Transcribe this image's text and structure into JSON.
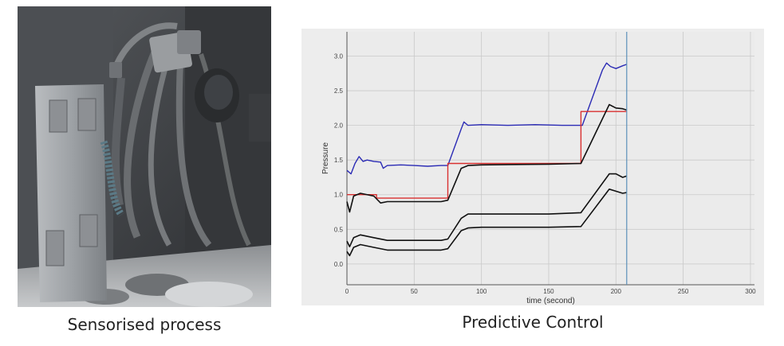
{
  "captions": {
    "left": "Sensorised process",
    "right": "Predictive Control"
  },
  "colors": {
    "blue_series": "#2b2bb5",
    "red_series": "#d93030",
    "black_series": "#111111",
    "cursor_line": "#5b8fb8"
  },
  "chart_data": {
    "type": "line",
    "xlabel": "time (second)",
    "ylabel": "Pressure",
    "xlim": [
      0,
      303
    ],
    "ylim": [
      -0.3,
      3.35
    ],
    "x_ticks": [
      "0",
      "50",
      "100",
      "150",
      "200",
      "250",
      "300"
    ],
    "y_ticks": [
      "0.0",
      "0.5",
      "1.0",
      "1.5",
      "2.0",
      "2.5",
      "3.0"
    ],
    "grid": true,
    "cursor_x": 208,
    "series": [
      {
        "color": "blue",
        "x": [
          0,
          3,
          6,
          9,
          12,
          15,
          20,
          25,
          27,
          30,
          40,
          50,
          60,
          70,
          75,
          85,
          87,
          90,
          100,
          120,
          140,
          160,
          175,
          190,
          193,
          196,
          200,
          205,
          208
        ],
        "y": [
          1.35,
          1.3,
          1.45,
          1.55,
          1.48,
          1.5,
          1.48,
          1.47,
          1.38,
          1.42,
          1.43,
          1.42,
          1.41,
          1.42,
          1.42,
          1.95,
          2.05,
          2.0,
          2.01,
          2.0,
          2.01,
          2.0,
          2.0,
          2.8,
          2.9,
          2.85,
          2.82,
          2.86,
          2.88
        ]
      },
      {
        "color": "red",
        "x": [
          0,
          22,
          22,
          75,
          75,
          174,
          174,
          208
        ],
        "y": [
          1.0,
          1.0,
          0.95,
          0.95,
          1.45,
          1.45,
          2.2,
          2.2
        ]
      },
      {
        "color": "black",
        "x": [
          0,
          2,
          5,
          10,
          20,
          25,
          30,
          50,
          70,
          75,
          85,
          90,
          100,
          150,
          174,
          195,
          200,
          205,
          208
        ],
        "y": [
          0.9,
          0.75,
          0.98,
          1.02,
          0.98,
          0.88,
          0.9,
          0.9,
          0.9,
          0.92,
          1.38,
          1.42,
          1.43,
          1.44,
          1.45,
          2.3,
          2.25,
          2.24,
          2.22
        ]
      },
      {
        "color": "black",
        "x": [
          0,
          2,
          5,
          10,
          20,
          30,
          50,
          70,
          75,
          85,
          90,
          100,
          150,
          174,
          195,
          200,
          205,
          208
        ],
        "y": [
          0.33,
          0.25,
          0.38,
          0.42,
          0.38,
          0.34,
          0.34,
          0.34,
          0.36,
          0.66,
          0.72,
          0.72,
          0.72,
          0.74,
          1.3,
          1.3,
          1.25,
          1.27
        ]
      },
      {
        "color": "black",
        "x": [
          0,
          2,
          5,
          10,
          20,
          30,
          50,
          70,
          75,
          85,
          90,
          100,
          150,
          174,
          195,
          200,
          205,
          208
        ],
        "y": [
          0.18,
          0.12,
          0.24,
          0.28,
          0.24,
          0.2,
          0.2,
          0.2,
          0.22,
          0.48,
          0.52,
          0.53,
          0.53,
          0.54,
          1.08,
          1.05,
          1.02,
          1.03
        ]
      }
    ]
  }
}
